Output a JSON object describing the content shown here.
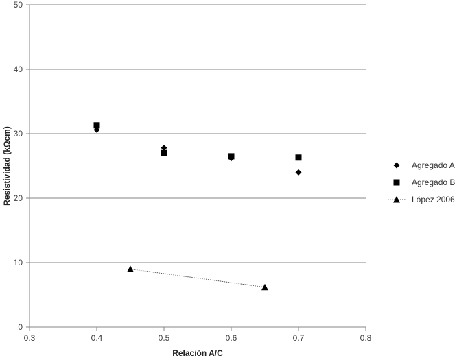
{
  "chart_data": {
    "type": "scatter",
    "xlabel": "Relación A/C",
    "ylabel": "Resistividad (kΩcm)",
    "xlim": [
      0.3,
      0.8
    ],
    "ylim": [
      0,
      50
    ],
    "x_ticks": [
      "0.3",
      "0.4",
      "0.5",
      "0.6",
      "0.7",
      "0.8"
    ],
    "y_ticks": [
      "0",
      "10",
      "20",
      "30",
      "40",
      "50"
    ],
    "grid": "horizontal",
    "legend_position": "right",
    "series": [
      {
        "name": "Agregado A",
        "marker": "diamond",
        "color": "#000000",
        "line": false,
        "points": [
          {
            "x": 0.4,
            "y": 30.6
          },
          {
            "x": 0.5,
            "y": 27.8
          },
          {
            "x": 0.6,
            "y": 26.2
          },
          {
            "x": 0.7,
            "y": 24.0
          }
        ]
      },
      {
        "name": "Agregado B",
        "marker": "square",
        "color": "#000000",
        "line": false,
        "points": [
          {
            "x": 0.4,
            "y": 31.3
          },
          {
            "x": 0.5,
            "y": 27.0
          },
          {
            "x": 0.6,
            "y": 26.5
          },
          {
            "x": 0.7,
            "y": 26.3
          }
        ]
      },
      {
        "name": "López 2006",
        "marker": "triangle",
        "color": "#000000",
        "line": true,
        "line_style": "dotted",
        "points": [
          {
            "x": 0.45,
            "y": 9.0
          },
          {
            "x": 0.65,
            "y": 6.2
          }
        ]
      }
    ]
  }
}
